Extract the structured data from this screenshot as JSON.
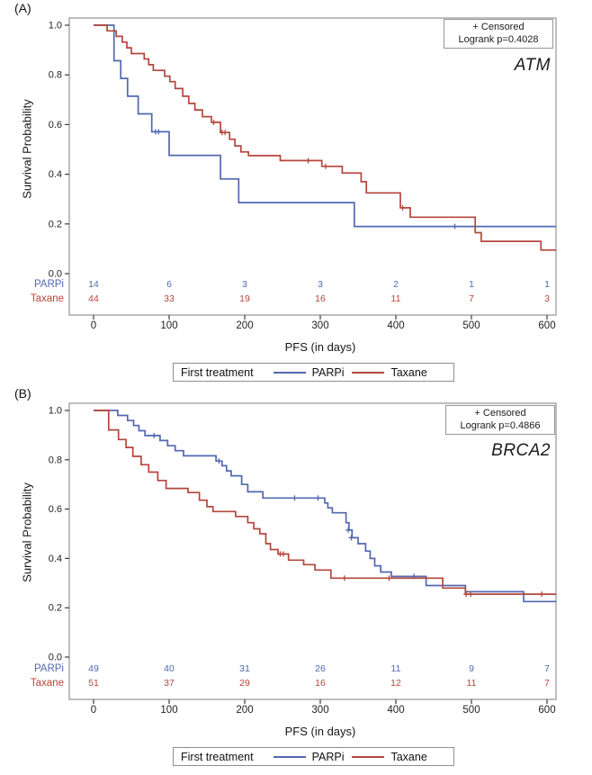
{
  "colors": {
    "parpi_blue": "#5268b0",
    "taxane_red": "#b5463b",
    "frame_gray": "#a8a8a8",
    "tick_dark": "#3c3c3c",
    "text_dark": "#1f1f1f",
    "box_border": "#969696"
  },
  "chart_data": [
    {
      "type": "line",
      "subtype": "kaplan-meier-step",
      "panel_label": "(A)",
      "gene": "ATM",
      "annotation_box": {
        "censored_note": "+ Censored",
        "logrank": "Logrank p=0.4028"
      },
      "xlabel": "PFS (in days)",
      "ylabel": "Survival Probability",
      "xlim": [
        0,
        643
      ],
      "ylim": [
        0,
        1.0
      ],
      "xticks": [
        0,
        100,
        200,
        300,
        400,
        500,
        600
      ],
      "yticks": [
        0.0,
        0.2,
        0.4,
        0.6,
        0.8,
        1.0
      ],
      "grid": false,
      "legend": {
        "title": "First treatment",
        "position": "bottom"
      },
      "at_risk_times": [
        0,
        100,
        200,
        300,
        400,
        500,
        600
      ],
      "series": [
        {
          "name": "PARPi",
          "color": "#5268b0",
          "at_risk": [
            14,
            6,
            3,
            3,
            2,
            1,
            1
          ],
          "steps": [
            [
              0,
              1.0
            ],
            [
              27,
              0.857
            ],
            [
              36,
              0.786
            ],
            [
              45,
              0.714
            ],
            [
              59,
              0.643
            ],
            [
              77,
              0.571
            ],
            [
              100,
              0.476
            ],
            [
              168,
              0.381
            ],
            [
              192,
              0.286
            ],
            [
              345,
              0.19
            ]
          ],
          "end_time": 612,
          "censors": [
            [
              82,
              0.571
            ],
            [
              86,
              0.571
            ],
            [
              478,
              0.19
            ]
          ]
        },
        {
          "name": "Taxane",
          "color": "#b5463b",
          "at_risk": [
            44,
            33,
            19,
            16,
            11,
            7,
            3
          ],
          "steps": [
            [
              0,
              1.0
            ],
            [
              18,
              0.977
            ],
            [
              30,
              0.955
            ],
            [
              38,
              0.932
            ],
            [
              44,
              0.909
            ],
            [
              50,
              0.886
            ],
            [
              67,
              0.864
            ],
            [
              73,
              0.841
            ],
            [
              79,
              0.818
            ],
            [
              94,
              0.795
            ],
            [
              101,
              0.773
            ],
            [
              108,
              0.745
            ],
            [
              118,
              0.714
            ],
            [
              126,
              0.685
            ],
            [
              134,
              0.659
            ],
            [
              144,
              0.632
            ],
            [
              156,
              0.609
            ],
            [
              168,
              0.568
            ],
            [
              180,
              0.541
            ],
            [
              187,
              0.514
            ],
            [
              195,
              0.49
            ],
            [
              205,
              0.475
            ],
            [
              247,
              0.455
            ],
            [
              302,
              0.432
            ],
            [
              329,
              0.405
            ],
            [
              354,
              0.37
            ],
            [
              361,
              0.325
            ],
            [
              406,
              0.265
            ],
            [
              419,
              0.227
            ],
            [
              505,
              0.165
            ],
            [
              513,
              0.13
            ],
            [
              592,
              0.095
            ]
          ],
          "end_time": 612,
          "censors": [
            [
              159,
              0.609
            ],
            [
              170,
              0.568
            ],
            [
              174,
              0.568
            ],
            [
              284,
              0.455
            ],
            [
              307,
              0.432
            ],
            [
              409,
              0.265
            ]
          ]
        }
      ]
    },
    {
      "type": "line",
      "subtype": "kaplan-meier-step",
      "panel_label": "(B)",
      "gene": "BRCA2",
      "annotation_box": {
        "censored_note": "+ Censored",
        "logrank": "Logrank p=0.4866"
      },
      "xlabel": "PFS (in days)",
      "ylabel": "Survival Probability",
      "xlim": [
        0,
        643
      ],
      "ylim": [
        0,
        1.0
      ],
      "xticks": [
        0,
        100,
        200,
        300,
        400,
        500,
        600
      ],
      "yticks": [
        0.0,
        0.2,
        0.4,
        0.6,
        0.8,
        1.0
      ],
      "grid": false,
      "legend": {
        "title": "First treatment",
        "position": "bottom"
      },
      "at_risk_times": [
        0,
        100,
        200,
        300,
        400,
        500,
        600
      ],
      "series": [
        {
          "name": "PARPi",
          "color": "#5268b0",
          "at_risk": [
            49,
            40,
            31,
            26,
            11,
            9,
            7
          ],
          "steps": [
            [
              0,
              1.0
            ],
            [
              32,
              0.98
            ],
            [
              45,
              0.959
            ],
            [
              53,
              0.939
            ],
            [
              60,
              0.918
            ],
            [
              68,
              0.898
            ],
            [
              88,
              0.878
            ],
            [
              98,
              0.857
            ],
            [
              108,
              0.837
            ],
            [
              119,
              0.816
            ],
            [
              162,
              0.795
            ],
            [
              170,
              0.776
            ],
            [
              176,
              0.755
            ],
            [
              182,
              0.735
            ],
            [
              196,
              0.7
            ],
            [
              204,
              0.67
            ],
            [
              224,
              0.645
            ],
            [
              306,
              0.625
            ],
            [
              310,
              0.605
            ],
            [
              316,
              0.585
            ],
            [
              334,
              0.545
            ],
            [
              338,
              0.515
            ],
            [
              342,
              0.484
            ],
            [
              350,
              0.46
            ],
            [
              360,
              0.43
            ],
            [
              366,
              0.4
            ],
            [
              372,
              0.37
            ],
            [
              380,
              0.345
            ],
            [
              394,
              0.327
            ],
            [
              440,
              0.29
            ],
            [
              492,
              0.265
            ],
            [
              569,
              0.225
            ]
          ],
          "end_time": 612,
          "censors": [
            [
              80,
              0.898
            ],
            [
              166,
              0.795
            ],
            [
              266,
              0.645
            ],
            [
              297,
              0.645
            ],
            [
              337,
              0.515
            ],
            [
              341,
              0.484
            ],
            [
              424,
              0.327
            ]
          ]
        },
        {
          "name": "Taxane",
          "color": "#b5463b",
          "at_risk": [
            51,
            37,
            29,
            16,
            12,
            11,
            7
          ],
          "steps": [
            [
              0,
              1.0
            ],
            [
              20,
              0.921
            ],
            [
              33,
              0.882
            ],
            [
              43,
              0.85
            ],
            [
              52,
              0.814
            ],
            [
              63,
              0.78
            ],
            [
              73,
              0.75
            ],
            [
              85,
              0.716
            ],
            [
              96,
              0.684
            ],
            [
              125,
              0.667
            ],
            [
              140,
              0.636
            ],
            [
              150,
              0.61
            ],
            [
              158,
              0.59
            ],
            [
              188,
              0.57
            ],
            [
              204,
              0.545
            ],
            [
              212,
              0.52
            ],
            [
              220,
              0.5
            ],
            [
              228,
              0.46
            ],
            [
              234,
              0.436
            ],
            [
              244,
              0.418
            ],
            [
              258,
              0.393
            ],
            [
              278,
              0.375
            ],
            [
              293,
              0.353
            ],
            [
              314,
              0.32
            ],
            [
              462,
              0.28
            ],
            [
              492,
              0.255
            ]
          ],
          "end_time": 612,
          "censors": [
            [
              247,
              0.418
            ],
            [
              251,
              0.418
            ],
            [
              332,
              0.32
            ],
            [
              391,
              0.32
            ],
            [
              493,
              0.255
            ],
            [
              499,
              0.255
            ],
            [
              593,
              0.255
            ]
          ]
        }
      ]
    }
  ]
}
